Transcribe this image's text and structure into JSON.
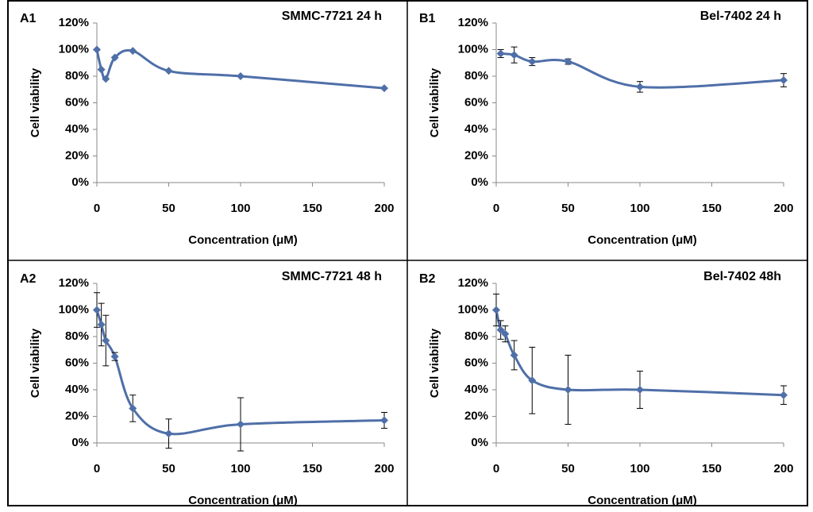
{
  "chart_data": [
    {
      "type": "line",
      "panel_label": "A1",
      "title": "SMMC-7721 24 h",
      "xlabel": "Concentration (μM)",
      "ylabel": "Cell viability",
      "color": "#4f6fa8",
      "x": [
        0,
        3.125,
        6.25,
        12.5,
        25,
        50,
        100,
        200
      ],
      "values": [
        100,
        85,
        78,
        94,
        99,
        84,
        80,
        71
      ],
      "xlim": [
        0,
        200
      ],
      "xticks": [
        0,
        50,
        100,
        150,
        200
      ],
      "ylim": [
        0,
        120
      ],
      "yticks": [
        {
          "value": 0,
          "label": "0%"
        },
        {
          "value": 20,
          "label": "20%"
        },
        {
          "value": 40,
          "label": "40%"
        },
        {
          "value": 60,
          "label": "60%"
        },
        {
          "value": 80,
          "label": "80%"
        },
        {
          "value": 100,
          "label": "100%"
        },
        {
          "value": 120,
          "label": "120%"
        }
      ]
    },
    {
      "type": "line",
      "panel_label": "B1",
      "title": "Bel-7402  24 h",
      "xlabel": "Concentration (μM)",
      "ylabel": "Cell viability",
      "color": "#4f6fa8",
      "x": [
        3.125,
        12.5,
        25,
        50,
        100,
        200
      ],
      "values": [
        97,
        96,
        91,
        91,
        72,
        77
      ],
      "errors": [
        3,
        6,
        3,
        2,
        4,
        5
      ],
      "xlim": [
        0,
        200
      ],
      "xticks": [
        0,
        50,
        100,
        150,
        200
      ],
      "ylim": [
        0,
        120
      ],
      "yticks": [
        {
          "value": 0,
          "label": "0%"
        },
        {
          "value": 20,
          "label": "20%"
        },
        {
          "value": 40,
          "label": "40%"
        },
        {
          "value": 60,
          "label": "60%"
        },
        {
          "value": 80,
          "label": "80%"
        },
        {
          "value": 100,
          "label": "100%"
        },
        {
          "value": 120,
          "label": "120%"
        }
      ]
    },
    {
      "type": "line",
      "panel_label": "A2",
      "title": "SMMC-7721  48 h",
      "xlabel": "Concentration (μM)",
      "ylabel": "Cell viability",
      "color": "#4f6fa8",
      "x": [
        0,
        3.125,
        6.25,
        12.5,
        25,
        50,
        100,
        200
      ],
      "values": [
        100,
        89,
        77,
        65,
        26,
        7,
        14,
        17
      ],
      "errors": [
        13,
        16,
        19,
        3,
        10,
        11,
        20,
        6
      ],
      "xlim": [
        0,
        200
      ],
      "xticks": [
        0,
        50,
        100,
        150,
        200
      ],
      "ylim": [
        0,
        120
      ],
      "yticks": [
        {
          "value": 0,
          "label": "0%"
        },
        {
          "value": 20,
          "label": "20%"
        },
        {
          "value": 40,
          "label": "40%"
        },
        {
          "value": 60,
          "label": "60%"
        },
        {
          "value": 80,
          "label": "80%"
        },
        {
          "value": 100,
          "label": "100%"
        },
        {
          "value": 120,
          "label": "120%"
        }
      ]
    },
    {
      "type": "line",
      "panel_label": "B2",
      "title": "Bel-7402  48h",
      "xlabel": "Concentration (μM)",
      "ylabel": "Cell viability",
      "color": "#4f6fa8",
      "x": [
        0,
        3.125,
        6.25,
        12.5,
        25,
        50,
        100,
        200
      ],
      "values": [
        100,
        85,
        82,
        66,
        47,
        40,
        40,
        36
      ],
      "errors": [
        12,
        7,
        6,
        11,
        25,
        26,
        14,
        7
      ],
      "xlim": [
        0,
        200
      ],
      "xticks": [
        0,
        50,
        100,
        150,
        200
      ],
      "ylim": [
        0,
        120
      ],
      "yticks": [
        {
          "value": 0,
          "label": "0%"
        },
        {
          "value": 20,
          "label": "20%"
        },
        {
          "value": 40,
          "label": "40%"
        },
        {
          "value": 60,
          "label": "60%"
        },
        {
          "value": 80,
          "label": "80%"
        },
        {
          "value": 100,
          "label": "100%"
        },
        {
          "value": 120,
          "label": "120%"
        }
      ]
    }
  ]
}
